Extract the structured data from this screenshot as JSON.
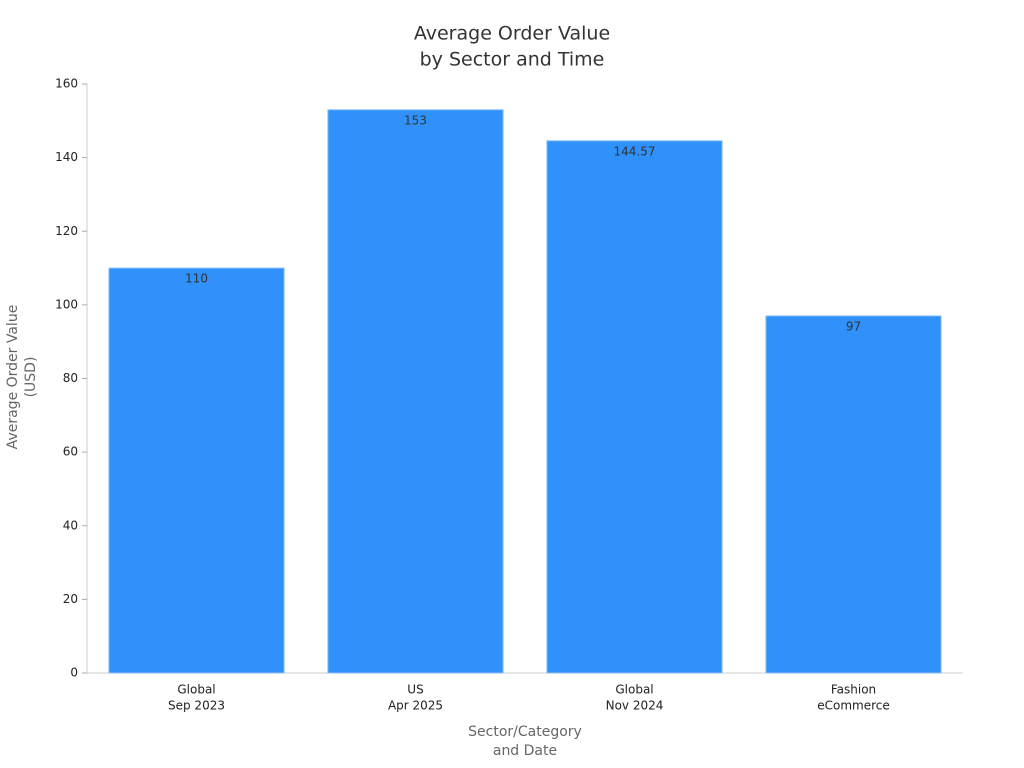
{
  "chart_data": {
    "type": "bar",
    "title": [
      "Average Order Value",
      "by Sector and Time"
    ],
    "x_label": [
      "Sector/Category",
      "and Date"
    ],
    "y_label": [
      "Average Order Value",
      "(USD)"
    ],
    "categories": [
      [
        "Global",
        "Sep 2023"
      ],
      [
        "US",
        "Apr 2025"
      ],
      [
        "Global",
        "Nov 2024"
      ],
      [
        "Fashion",
        "eCommerce"
      ]
    ],
    "values": [
      110,
      153,
      144.57,
      97
    ],
    "color": "#2f91f9",
    "ylim": [
      0,
      160
    ],
    "yticks": [
      0,
      20,
      40,
      60,
      80,
      100,
      120,
      140,
      160
    ],
    "grid": false
  }
}
